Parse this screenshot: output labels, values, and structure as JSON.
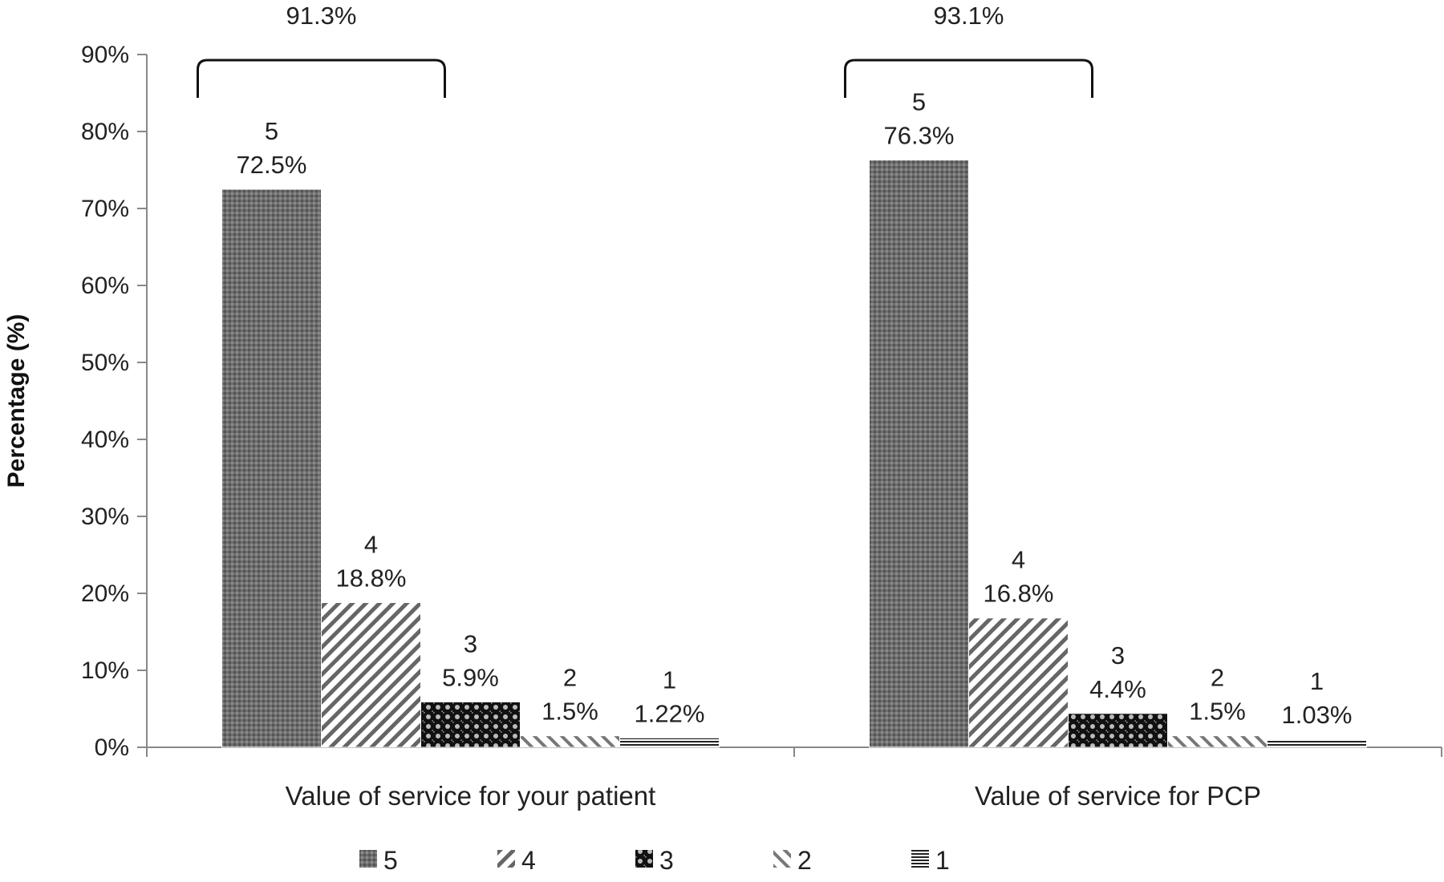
{
  "chart_data": {
    "type": "bar",
    "categories": [
      "Value of service for your patient",
      "Value of service for PCP"
    ],
    "series": [
      {
        "name": "5",
        "values": [
          72.5,
          76.3
        ],
        "labels": [
          "72.5%",
          "76.3%"
        ],
        "pattern": "dots"
      },
      {
        "name": "4",
        "values": [
          18.8,
          16.8
        ],
        "labels": [
          "18.8%",
          "16.8%"
        ],
        "pattern": "diag-back"
      },
      {
        "name": "3",
        "values": [
          5.9,
          4.4
        ],
        "labels": [
          "5.9%",
          "4.4%"
        ],
        "pattern": "checker"
      },
      {
        "name": "2",
        "values": [
          1.5,
          1.5
        ],
        "labels": [
          "1.5%",
          "1.5%"
        ],
        "pattern": "diag-fwd"
      },
      {
        "name": "1",
        "values": [
          1.22,
          1.03
        ],
        "labels": [
          "1.22%",
          "1.03%"
        ],
        "pattern": "horiz"
      }
    ],
    "brackets": [
      "91.3%",
      "93.1%"
    ],
    "title": "",
    "xlabel": "",
    "ylabel": "Percentage (%)",
    "ylim": [
      0,
      90
    ],
    "yticks": [
      "0%",
      "10%",
      "20%",
      "30%",
      "40%",
      "50%",
      "60%",
      "70%",
      "80%",
      "90%"
    ],
    "legend_position": "bottom",
    "grid": false
  }
}
